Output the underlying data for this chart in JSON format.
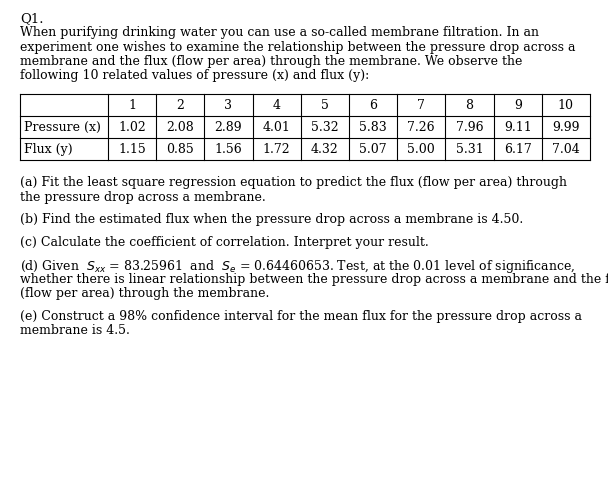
{
  "title": "Q1.",
  "intro_lines": [
    "When purifying drinking water you can use a so-called membrane filtration. In an",
    "experiment one wishes to examine the relationship between the pressure drop across a",
    "membrane and the flux (flow per area) through the membrane. We observe the",
    "following 10 related values of pressure (x) and flux (y):"
  ],
  "col_headers": [
    "",
    "1",
    "2",
    "3",
    "4",
    "5",
    "6",
    "7",
    "8",
    "9",
    "10"
  ],
  "row_pressure": [
    "Pressure (x)",
    "1.02",
    "2.08",
    "2.89",
    "4.01",
    "5.32",
    "5.83",
    "7.26",
    "7.96",
    "9.11",
    "9.99"
  ],
  "row_flux": [
    "Flux (y)",
    "1.15",
    "0.85",
    "1.56",
    "1.72",
    "4.32",
    "5.07",
    "5.00",
    "5.31",
    "6.17",
    "7.04"
  ],
  "qa_lines": [
    "(a) Fit the least square regression equation to predict the flux (flow per area) through",
    "the pressure drop across a membrane."
  ],
  "qb": "(b) Find the estimated flux when the pressure drop across a membrane is 4.50.",
  "qc": "(c) Calculate the coefficient of correlation. Interpret your result.",
  "qd_lines": [
    "(d) Given  $S_{xx}$ = 83.25961  and  $S_{e}$ = 0.64460653. Test, at the 0.01 level of significance,",
    "whether there is linear relationship between the pressure drop across a membrane and the flux",
    "(flow per area) through the membrane."
  ],
  "qe_lines": [
    "(e) Construct a 98% confidence interval for the mean flux for the pressure drop across a",
    "membrane is 4.5."
  ],
  "bg_color": "#ffffff",
  "text_color": "#000000",
  "font_size": 9.0,
  "title_font_size": 9.5
}
